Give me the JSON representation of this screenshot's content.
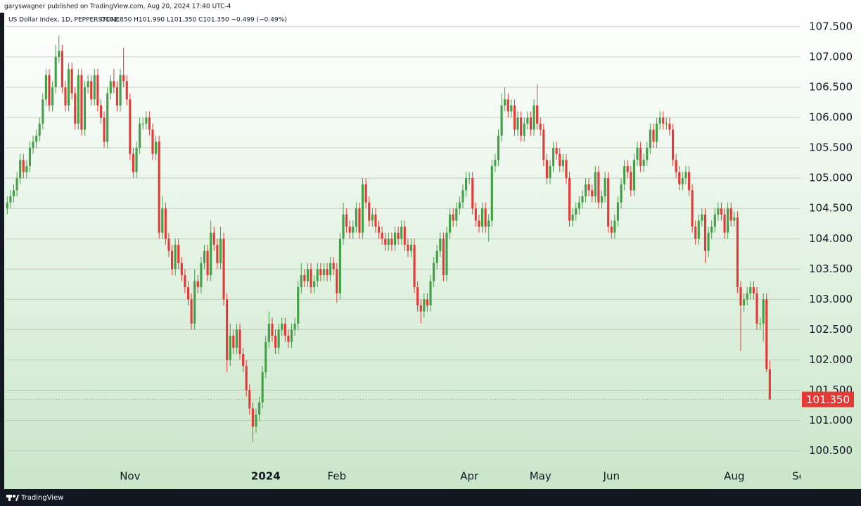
{
  "header": {
    "published": "garyswagner published on TradingView.com, Aug 20, 2024 17:40 UTC-4"
  },
  "footer": {
    "brand": "TradingView"
  },
  "chart_data": {
    "type": "candlestick",
    "title": "US Dollar Index, 1D, PEPPERSTONE",
    "summary": "O101.850  H101.990  L101.350  C101.350  −0.499 (−0.49%)",
    "up_color": "#43a047",
    "down_color": "#e53935",
    "grid": true,
    "xlim": [
      -0.5,
      245.5
    ],
    "xticks": [
      {
        "value": 38,
        "label": "Nov"
      },
      {
        "value": 80,
        "label": "2024"
      },
      {
        "value": 102,
        "label": "Feb"
      },
      {
        "value": 143,
        "label": "Apr"
      },
      {
        "value": 165,
        "label": "May"
      },
      {
        "value": 187,
        "label": "Jun"
      },
      {
        "value": 225,
        "label": "Aug"
      },
      {
        "value": 246,
        "label": "Sep"
      }
    ],
    "ylim": [
      99.87,
      107.73
    ],
    "yticks": [
      {
        "value": 100.5,
        "label": "100.500"
      },
      {
        "value": 101,
        "label": "101.000"
      },
      {
        "value": 101.5,
        "label": "101.500"
      },
      {
        "value": 102,
        "label": "102.000"
      },
      {
        "value": 102.5,
        "label": "102.500"
      },
      {
        "value": 103,
        "label": "103.000"
      },
      {
        "value": 103.5,
        "label": "103.500"
      },
      {
        "value": 104,
        "label": "104.000"
      },
      {
        "value": 104.5,
        "label": "104.500"
      },
      {
        "value": 105,
        "label": "105.000"
      },
      {
        "value": 105.5,
        "label": "105.500"
      },
      {
        "value": 106,
        "label": "106.000"
      },
      {
        "value": 106.5,
        "label": "106.500"
      },
      {
        "value": 107,
        "label": "107.000"
      },
      {
        "value": 107.5,
        "label": "107.500"
      }
    ],
    "last_price": {
      "value": 101.35,
      "label": "101.350"
    },
    "open": [
      104.5,
      104.6,
      104.7,
      104.8,
      105.0,
      105.3,
      105.1,
      105.2,
      105.5,
      105.6,
      105.7,
      105.9,
      106.3,
      106.7,
      106.2,
      106.5,
      107.0,
      107.1,
      106.5,
      106.2,
      106.8,
      106.4,
      105.9,
      106.7,
      105.8,
      106.5,
      106.6,
      106.3,
      106.7,
      106.2,
      106.0,
      105.6,
      106.4,
      106.6,
      106.5,
      106.2,
      106.7,
      106.6,
      106.3,
      105.4,
      105.1,
      105.5,
      105.9,
      105.9,
      106.0,
      105.8,
      105.4,
      105.6,
      104.1,
      104.5,
      104.0,
      103.8,
      103.5,
      103.9,
      103.6,
      103.4,
      103.2,
      103.0,
      102.6,
      103.3,
      103.2,
      103.6,
      103.8,
      103.4,
      104.1,
      103.9,
      103.6,
      104.0,
      103.0,
      102.0,
      102.4,
      102.2,
      102.5,
      102.1,
      101.9,
      101.5,
      101.2,
      100.9,
      101.1,
      101.3,
      101.8,
      102.3,
      102.6,
      102.4,
      102.2,
      102.5,
      102.6,
      102.4,
      102.3,
      102.5,
      102.6,
      103.2,
      103.4,
      103.3,
      103.5,
      103.2,
      103.3,
      103.5,
      103.4,
      103.5,
      103.4,
      103.6,
      103.5,
      103.1,
      104.0,
      104.4,
      104.2,
      104.1,
      104.2,
      104.5,
      104.1,
      104.9,
      104.6,
      104.3,
      104.4,
      104.2,
      104.1,
      104.0,
      103.9,
      104.0,
      103.9,
      104.1,
      104.0,
      104.2,
      103.9,
      103.8,
      103.9,
      103.2,
      102.9,
      102.8,
      103.0,
      102.9,
      103.3,
      103.6,
      103.8,
      104.0,
      103.4,
      104.1,
      104.4,
      104.3,
      104.5,
      104.6,
      104.8,
      105.0,
      105.0,
      104.5,
      104.3,
      104.2,
      104.5,
      104.2,
      104.3,
      105.2,
      105.3,
      105.7,
      106.2,
      106.3,
      106.1,
      106.2,
      105.8,
      106.0,
      105.7,
      105.9,
      106.0,
      105.8,
      106.2,
      105.9,
      105.8,
      105.3,
      105.0,
      105.2,
      105.5,
      105.4,
      105.2,
      105.3,
      105.0,
      104.3,
      104.4,
      104.5,
      104.6,
      104.7,
      104.9,
      104.8,
      104.7,
      105.1,
      104.6,
      104.7,
      105.0,
      104.2,
      104.1,
      104.3,
      104.6,
      104.9,
      105.2,
      105.1,
      104.8,
      105.3,
      105.5,
      105.2,
      105.3,
      105.5,
      105.8,
      105.6,
      105.9,
      106.0,
      105.9,
      105.9,
      105.8,
      105.3,
      105.1,
      104.9,
      105.0,
      105.1,
      104.8,
      104.2,
      104.0,
      104.3,
      104.4,
      103.8,
      104.1,
      104.2,
      104.4,
      104.5,
      104.4,
      104.1,
      104.5,
      104.3,
      104.35,
      103.2,
      102.9,
      103.0,
      103.1,
      103.2,
      103.1,
      102.6,
      102.6,
      103.0,
      101.85
    ],
    "high": [
      104.7,
      104.8,
      104.9,
      105.1,
      105.4,
      105.4,
      105.3,
      105.6,
      105.7,
      105.8,
      106.0,
      106.4,
      106.8,
      106.8,
      106.6,
      107.2,
      107.35,
      107.2,
      106.6,
      106.9,
      106.9,
      106.5,
      106.8,
      106.8,
      106.6,
      106.7,
      106.7,
      106.8,
      106.8,
      106.3,
      106.1,
      106.5,
      106.7,
      106.8,
      106.6,
      106.8,
      107.15,
      106.7,
      106.4,
      105.5,
      105.6,
      106.0,
      106.0,
      106.1,
      106.1,
      105.9,
      105.7,
      105.7,
      104.7,
      104.6,
      104.1,
      103.9,
      104.0,
      104.0,
      103.7,
      103.5,
      103.3,
      103.1,
      103.5,
      103.4,
      103.7,
      103.9,
      103.9,
      104.3,
      104.2,
      104.0,
      104.2,
      104.1,
      103.1,
      102.6,
      102.5,
      102.6,
      102.6,
      102.2,
      102.0,
      101.6,
      101.3,
      101.2,
      101.4,
      101.9,
      102.4,
      102.8,
      102.7,
      102.5,
      102.6,
      102.7,
      102.7,
      102.5,
      102.6,
      102.7,
      103.3,
      103.6,
      103.5,
      103.6,
      103.6,
      103.4,
      103.6,
      103.6,
      103.6,
      103.6,
      103.7,
      103.7,
      103.6,
      104.1,
      104.6,
      104.5,
      104.3,
      104.3,
      104.6,
      104.6,
      105.0,
      105.0,
      104.7,
      104.5,
      104.5,
      104.3,
      104.2,
      104.1,
      104.1,
      104.1,
      104.2,
      104.2,
      104.3,
      104.3,
      104.0,
      104.0,
      104.0,
      103.3,
      103.0,
      103.1,
      103.1,
      103.4,
      103.7,
      103.9,
      104.1,
      104.1,
      104.2,
      104.5,
      104.5,
      104.6,
      104.7,
      104.9,
      105.1,
      105.1,
      105.1,
      104.6,
      104.4,
      104.6,
      104.6,
      104.4,
      105.3,
      105.4,
      105.8,
      106.4,
      106.5,
      106.4,
      106.3,
      106.3,
      106.1,
      106.1,
      106.0,
      106.1,
      106.1,
      106.3,
      106.55,
      106.0,
      105.9,
      105.4,
      105.3,
      105.6,
      105.6,
      105.5,
      105.4,
      105.4,
      105.1,
      104.5,
      104.6,
      104.7,
      104.8,
      105.0,
      105.0,
      104.9,
      105.2,
      105.2,
      104.8,
      105.1,
      105.1,
      104.3,
      104.4,
      104.7,
      105.0,
      105.3,
      105.3,
      105.2,
      105.4,
      105.6,
      105.6,
      105.4,
      105.6,
      105.9,
      105.9,
      106.0,
      106.1,
      106.1,
      106.0,
      106.0,
      105.9,
      105.4,
      105.2,
      105.1,
      105.2,
      105.2,
      104.9,
      104.3,
      104.4,
      104.5,
      104.5,
      104.2,
      104.3,
      104.5,
      104.6,
      104.6,
      104.5,
      104.6,
      104.6,
      104.45,
      104.45,
      103.3,
      103.1,
      103.2,
      103.3,
      103.3,
      103.2,
      102.7,
      103.1,
      103.1,
      101.99
    ],
    "low": [
      104.4,
      104.5,
      104.6,
      104.7,
      104.9,
      105.0,
      105.0,
      105.1,
      105.4,
      105.5,
      105.6,
      105.8,
      106.2,
      106.1,
      106.1,
      106.4,
      106.9,
      106.4,
      106.1,
      106.1,
      106.3,
      105.8,
      105.8,
      105.7,
      105.7,
      106.4,
      106.2,
      106.2,
      106.1,
      105.9,
      105.5,
      105.5,
      106.3,
      106.4,
      106.1,
      106.1,
      106.5,
      106.2,
      105.3,
      105.0,
      105.0,
      105.4,
      105.8,
      105.8,
      105.7,
      105.3,
      105.3,
      104.0,
      104.0,
      103.9,
      103.7,
      103.4,
      103.4,
      103.5,
      103.3,
      103.1,
      102.9,
      102.5,
      102.5,
      103.1,
      103.1,
      103.5,
      103.3,
      103.3,
      103.8,
      103.5,
      103.5,
      102.9,
      101.8,
      101.9,
      102.1,
      102.1,
      102.0,
      101.8,
      101.4,
      101.1,
      100.65,
      100.8,
      101.0,
      101.2,
      101.7,
      102.2,
      102.3,
      102.1,
      102.1,
      102.4,
      102.3,
      102.2,
      102.2,
      102.4,
      102.5,
      103.1,
      103.2,
      103.2,
      103.1,
      103.1,
      103.2,
      103.3,
      103.3,
      103.3,
      103.3,
      103.4,
      102.95,
      103.0,
      103.9,
      104.1,
      104.0,
      104.0,
      104.1,
      104.0,
      104.0,
      104.5,
      104.2,
      104.2,
      104.1,
      104.0,
      103.9,
      103.8,
      103.8,
      103.8,
      103.8,
      103.9,
      103.9,
      103.8,
      103.7,
      103.7,
      103.1,
      102.8,
      102.6,
      102.7,
      102.8,
      102.8,
      103.2,
      103.5,
      103.7,
      103.3,
      103.3,
      104.0,
      104.2,
      104.2,
      104.4,
      104.5,
      104.7,
      104.9,
      104.4,
      104.2,
      104.1,
      104.1,
      104.1,
      103.95,
      104.2,
      105.1,
      105.2,
      105.6,
      106.1,
      106.0,
      106.0,
      105.7,
      105.7,
      105.6,
      105.6,
      105.8,
      105.7,
      105.7,
      105.8,
      105.7,
      105.2,
      104.9,
      104.9,
      105.1,
      105.3,
      105.1,
      105.1,
      104.9,
      104.2,
      104.2,
      104.3,
      104.4,
      104.5,
      104.6,
      104.7,
      104.6,
      104.6,
      104.5,
      104.5,
      104.6,
      104.1,
      104.0,
      104.0,
      104.2,
      104.5,
      104.8,
      105.0,
      104.7,
      104.7,
      105.2,
      105.1,
      105.1,
      105.2,
      105.4,
      105.5,
      105.5,
      105.8,
      105.8,
      105.8,
      105.7,
      105.2,
      105.0,
      104.8,
      104.8,
      104.9,
      104.7,
      104.1,
      103.9,
      103.9,
      104.2,
      103.6,
      103.7,
      104.0,
      104.1,
      104.3,
      104.3,
      104.0,
      104.0,
      104.2,
      104.2,
      103.1,
      102.15,
      102.8,
      102.9,
      103.0,
      103.0,
      102.5,
      102.5,
      102.3,
      101.8,
      101.35
    ],
    "close": [
      104.6,
      104.7,
      104.8,
      105.0,
      105.3,
      105.1,
      105.2,
      105.5,
      105.6,
      105.7,
      105.9,
      106.3,
      106.7,
      106.2,
      106.5,
      107.0,
      107.1,
      106.5,
      106.2,
      106.8,
      106.4,
      105.9,
      106.7,
      105.8,
      106.5,
      106.6,
      106.3,
      106.7,
      106.2,
      106.0,
      105.6,
      106.4,
      106.6,
      106.5,
      106.2,
      106.7,
      106.6,
      106.3,
      105.4,
      105.1,
      105.5,
      105.9,
      105.9,
      106.0,
      105.8,
      105.4,
      105.6,
      104.1,
      104.5,
      104.0,
      103.8,
      103.5,
      103.9,
      103.6,
      103.4,
      103.2,
      103.0,
      102.6,
      103.3,
      103.2,
      103.6,
      103.8,
      103.4,
      104.1,
      103.9,
      103.6,
      104.0,
      103.0,
      102.0,
      102.4,
      102.2,
      102.5,
      102.1,
      101.9,
      101.5,
      101.2,
      100.9,
      101.1,
      101.3,
      101.8,
      102.3,
      102.6,
      102.4,
      102.2,
      102.5,
      102.6,
      102.4,
      102.3,
      102.5,
      102.6,
      103.2,
      103.4,
      103.3,
      103.5,
      103.2,
      103.3,
      103.5,
      103.4,
      103.5,
      103.4,
      103.6,
      103.5,
      103.1,
      104.0,
      104.4,
      104.2,
      104.1,
      104.2,
      104.5,
      104.1,
      104.9,
      104.6,
      104.3,
      104.4,
      104.2,
      104.1,
      104.0,
      103.9,
      104.0,
      103.9,
      104.1,
      104.0,
      104.2,
      103.9,
      103.8,
      103.9,
      103.2,
      102.9,
      102.8,
      103.0,
      102.9,
      103.3,
      103.6,
      103.8,
      104.0,
      103.4,
      104.1,
      104.4,
      104.3,
      104.5,
      104.6,
      104.8,
      105.0,
      105.0,
      104.5,
      104.3,
      104.2,
      104.5,
      104.2,
      104.3,
      105.2,
      105.3,
      105.7,
      106.2,
      106.3,
      106.1,
      106.2,
      105.8,
      106.0,
      105.7,
      105.9,
      106.0,
      105.8,
      106.2,
      105.9,
      105.8,
      105.3,
      105.0,
      105.2,
      105.5,
      105.4,
      105.2,
      105.3,
      105.0,
      104.3,
      104.4,
      104.5,
      104.6,
      104.7,
      104.9,
      104.8,
      104.7,
      105.1,
      104.6,
      104.7,
      105.0,
      104.2,
      104.1,
      104.3,
      104.6,
      104.9,
      105.2,
      105.1,
      104.8,
      105.3,
      105.5,
      105.2,
      105.3,
      105.5,
      105.8,
      105.6,
      105.9,
      106.0,
      105.9,
      105.9,
      105.8,
      105.3,
      105.1,
      104.9,
      105.0,
      105.1,
      104.8,
      104.2,
      104.0,
      104.3,
      104.4,
      103.8,
      104.1,
      104.2,
      104.4,
      104.5,
      104.4,
      104.1,
      104.5,
      104.3,
      104.35,
      103.2,
      102.9,
      103.0,
      103.1,
      103.2,
      103.1,
      102.6,
      102.6,
      103.0,
      101.85,
      101.35
    ]
  }
}
